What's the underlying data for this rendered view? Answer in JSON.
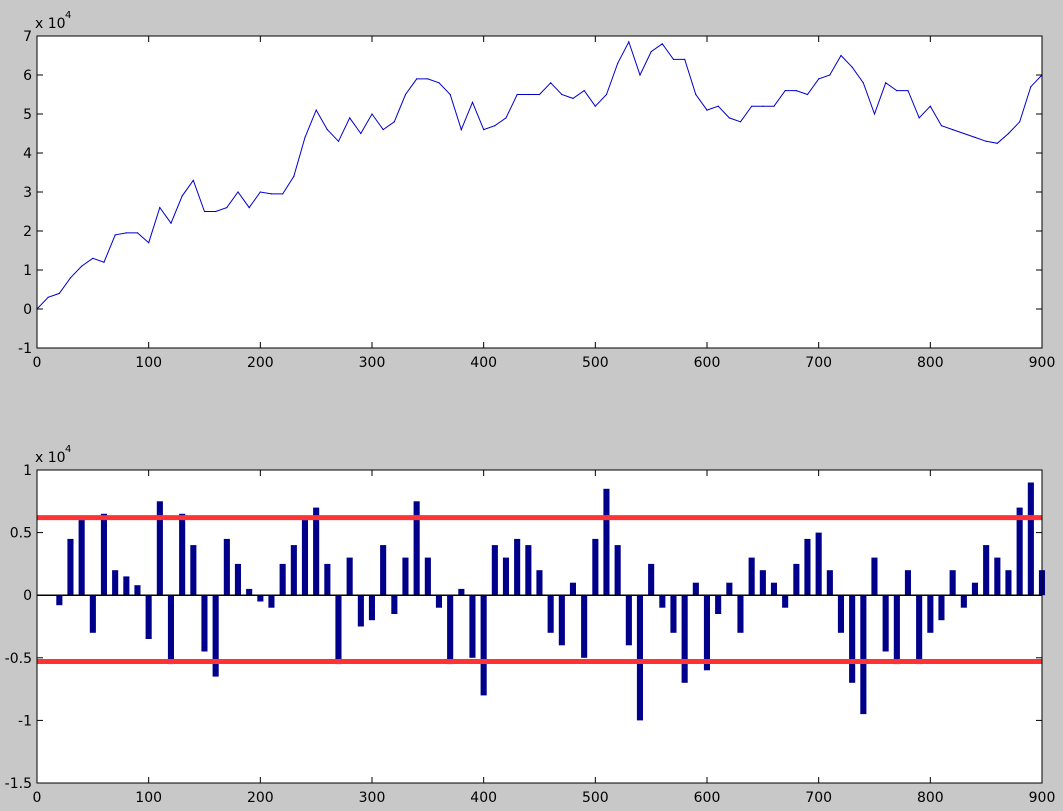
{
  "figure_background": "#c8c8c8",
  "axes_background": "#ffffff",
  "chart_data": [
    {
      "type": "line",
      "xlim": [
        0,
        900
      ],
      "ylim": [
        -1,
        7
      ],
      "x_ticks": [
        0,
        100,
        200,
        300,
        400,
        500,
        600,
        700,
        800,
        900
      ],
      "y_ticks": [
        -1,
        0,
        1,
        2,
        3,
        4,
        5,
        6,
        7
      ],
      "exponent_label": "x 10",
      "exponent_power": "4",
      "grid": false,
      "series": [
        {
          "color": "#0000cc",
          "x": [
            0,
            10,
            20,
            30,
            40,
            50,
            60,
            70,
            80,
            90,
            100,
            110,
            120,
            130,
            140,
            150,
            160,
            170,
            180,
            190,
            200,
            210,
            220,
            230,
            240,
            250,
            260,
            270,
            280,
            290,
            300,
            310,
            320,
            330,
            340,
            350,
            360,
            370,
            380,
            390,
            400,
            410,
            420,
            430,
            440,
            450,
            460,
            470,
            480,
            490,
            500,
            510,
            520,
            530,
            540,
            550,
            560,
            570,
            580,
            590,
            600,
            610,
            620,
            630,
            640,
            650,
            660,
            670,
            680,
            690,
            700,
            710,
            720,
            730,
            740,
            750,
            760,
            770,
            780,
            790,
            800,
            810,
            820,
            830,
            840,
            850,
            860,
            870,
            880,
            890,
            900
          ],
          "y": [
            0,
            0.3,
            0.4,
            0.8,
            1.1,
            1.3,
            1.2,
            1.9,
            1.95,
            1.95,
            1.7,
            2.6,
            2.2,
            2.9,
            3.3,
            2.5,
            2.5,
            2.6,
            3.0,
            2.6,
            3.0,
            2.95,
            2.95,
            3.4,
            4.4,
            5.1,
            4.6,
            4.3,
            4.9,
            4.5,
            5.0,
            4.6,
            4.8,
            5.5,
            5.9,
            5.9,
            5.8,
            5.5,
            4.6,
            5.3,
            4.6,
            4.7,
            4.9,
            5.5,
            5.5,
            5.5,
            5.8,
            5.5,
            5.4,
            5.6,
            5.2,
            5.5,
            6.3,
            6.85,
            6.0,
            6.6,
            6.8,
            6.4,
            6.4,
            5.5,
            5.1,
            5.2,
            4.9,
            4.8,
            5.2,
            5.2,
            5.2,
            5.6,
            5.6,
            5.5,
            5.9,
            6.0,
            6.5,
            6.2,
            5.8,
            5.0,
            5.8,
            5.6,
            5.6,
            4.9,
            5.2,
            4.7,
            4.6,
            4.5,
            4.4,
            4.3,
            4.25,
            4.5,
            4.8,
            5.7,
            6.0
          ]
        }
      ]
    },
    {
      "type": "bar",
      "xlim": [
        0,
        900
      ],
      "ylim": [
        -1.5,
        1
      ],
      "x_ticks": [
        0,
        100,
        200,
        300,
        400,
        500,
        600,
        700,
        800,
        900
      ],
      "y_ticks": [
        -1.5,
        -1,
        -0.5,
        0,
        0.5,
        1
      ],
      "exponent_label": "x 10",
      "exponent_power": "4",
      "grid": false,
      "bar_color": "#00008b",
      "threshold_color": "#ff3333",
      "thresholds": [
        0.62,
        -0.53
      ],
      "series": [
        {
          "x": [
            20,
            30,
            40,
            50,
            60,
            70,
            80,
            90,
            100,
            110,
            120,
            130,
            140,
            150,
            160,
            170,
            180,
            190,
            200,
            210,
            220,
            230,
            240,
            250,
            260,
            270,
            280,
            290,
            300,
            310,
            320,
            330,
            340,
            350,
            360,
            370,
            380,
            390,
            400,
            410,
            420,
            430,
            440,
            450,
            460,
            470,
            480,
            490,
            500,
            510,
            520,
            530,
            540,
            550,
            560,
            570,
            580,
            590,
            600,
            610,
            620,
            630,
            640,
            650,
            660,
            670,
            680,
            690,
            700,
            710,
            720,
            730,
            740,
            750,
            760,
            770,
            780,
            790,
            800,
            810,
            820,
            830,
            840,
            850,
            860,
            870,
            880,
            890,
            900
          ],
          "y": [
            -0.08,
            0.45,
            0.6,
            -0.3,
            0.65,
            0.2,
            0.15,
            0.08,
            -0.35,
            0.75,
            -0.55,
            0.65,
            0.4,
            -0.45,
            -0.65,
            0.45,
            0.25,
            0.05,
            -0.05,
            -0.1,
            0.25,
            0.4,
            0.6,
            0.7,
            0.25,
            -0.55,
            0.3,
            -0.25,
            -0.2,
            0.4,
            -0.15,
            0.3,
            0.75,
            0.3,
            -0.1,
            -0.55,
            0.05,
            -0.5,
            -0.8,
            0.4,
            0.3,
            0.45,
            0.4,
            0.2,
            -0.3,
            -0.4,
            0.1,
            -0.5,
            0.45,
            0.85,
            0.4,
            -0.4,
            -1.0,
            0.25,
            -0.1,
            -0.3,
            -0.7,
            0.1,
            -0.6,
            -0.15,
            0.1,
            -0.3,
            0.3,
            0.2,
            0.1,
            -0.1,
            0.25,
            0.45,
            0.5,
            0.2,
            -0.3,
            -0.7,
            -0.95,
            0.3,
            -0.45,
            -0.55,
            0.2,
            -0.55,
            -0.3,
            -0.2,
            0.2,
            -0.1,
            0.1,
            0.4,
            0.3,
            0.2,
            0.7,
            0.9,
            0.2
          ]
        }
      ]
    }
  ]
}
